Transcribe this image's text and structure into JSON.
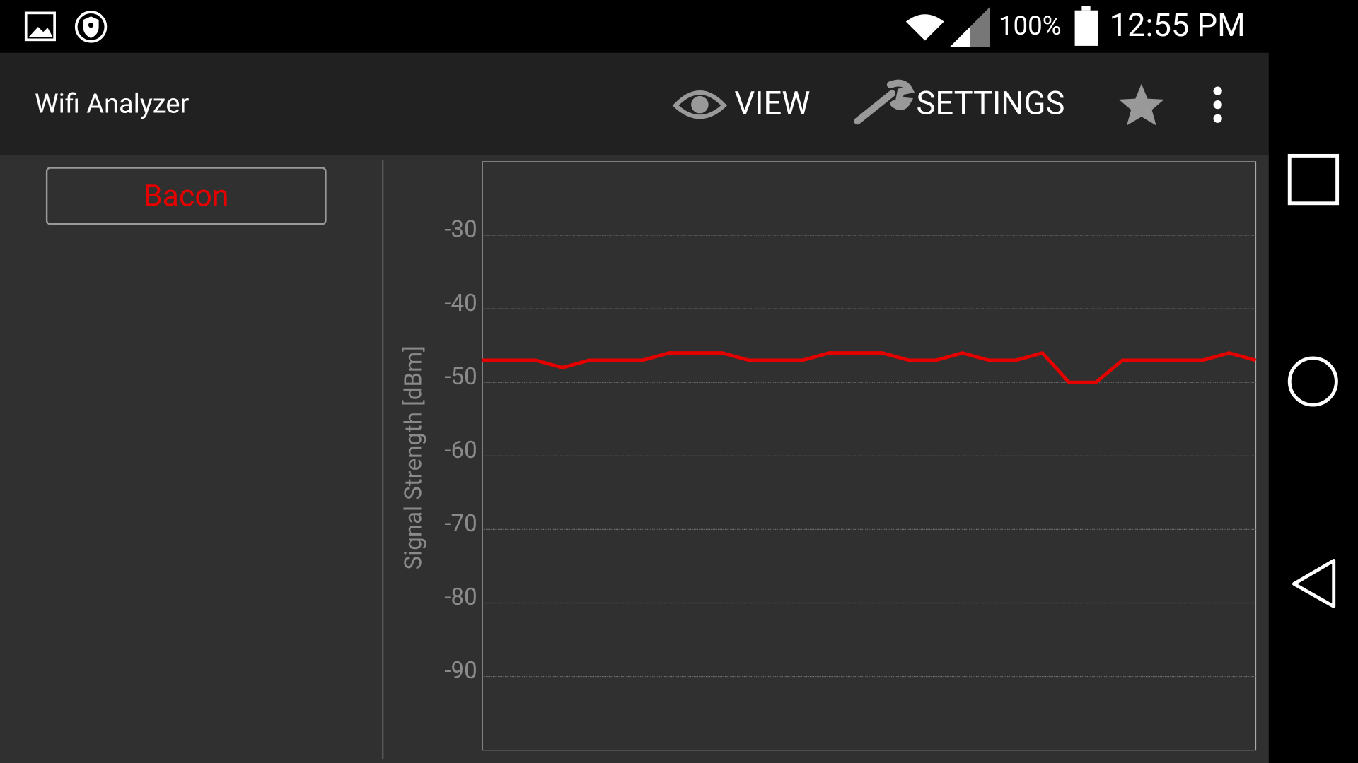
{
  "status_bar": {
    "battery": "100%",
    "time": "12:55 PM"
  },
  "app_bar": {
    "title": "Wifi Analyzer",
    "view": "VIEW",
    "settings": "SETTINGS"
  },
  "chart_data": {
    "type": "line",
    "ylabel": "Signal Strength [dBm]",
    "ylim": [
      -100,
      -20
    ],
    "yticks": [
      -30,
      -40,
      -50,
      -60,
      -70,
      -80,
      -90
    ],
    "grid": true,
    "series": [
      {
        "name": "Bacon",
        "color": "#e50000",
        "values": [
          -47,
          -47,
          -47,
          -48,
          -47,
          -47,
          -47,
          -46,
          -46,
          -46,
          -47,
          -47,
          -47,
          -46,
          -46,
          -46,
          -47,
          -47,
          -46,
          -47,
          -47,
          -46,
          -50,
          -50,
          -47,
          -47,
          -47,
          -47,
          -46,
          -47
        ]
      }
    ]
  }
}
